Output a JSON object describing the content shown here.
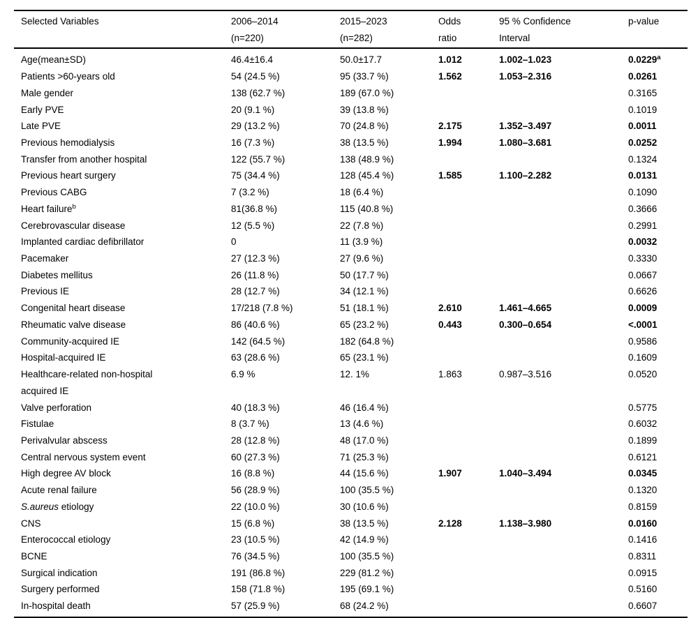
{
  "colors": {
    "text": "#000000",
    "background": "#ffffff",
    "rule": "#000000"
  },
  "table": {
    "headers": {
      "variables": "Selected Variables",
      "period1": "2006–2014\n(n=220)",
      "period2": "2015–2023\n(n=282)",
      "odds_ratio": "Odds\nratio",
      "ci": "95 % Confidence\nInterval",
      "p_value": "p-value"
    },
    "rows": [
      {
        "v": "Age(mean±SD)",
        "a": "46.4±16.4",
        "b": "50.0±17.7",
        "or": "1.012",
        "ci": "1.002–1.023",
        "p": "0.0229",
        "ps": "a",
        "bold": true
      },
      {
        "v": "Patients >60-years old",
        "a": "54 (24.5 %)",
        "b": "95 (33.7 %)",
        "or": "1.562",
        "ci": "1.053–2.316",
        "p": "0.0261",
        "bold": true
      },
      {
        "v": "Male gender",
        "a": "138 (62.7 %)",
        "b": "189 (67.0 %)",
        "or": "",
        "ci": "",
        "p": "0.3165",
        "bold": false
      },
      {
        "v": "Early PVE",
        "a": "20 (9.1 %)",
        "b": "39 (13.8 %)",
        "or": "",
        "ci": "",
        "p": "0.1019",
        "bold": false
      },
      {
        "v": "Late PVE",
        "a": "29 (13.2 %)",
        "b": "70 (24.8 %)",
        "or": "2.175",
        "ci": "1.352–3.497",
        "p": "0.0011",
        "bold": true
      },
      {
        "v": "Previous hemodialysis",
        "a": "16 (7.3 %)",
        "b": "38 (13.5 %)",
        "or": "1.994",
        "ci": "1.080–3.681",
        "p": "0.0252",
        "bold": true
      },
      {
        "v": "Transfer from another hospital",
        "a": "122 (55.7 %)",
        "b": "138 (48.9 %)",
        "or": "",
        "ci": "",
        "p": "0.1324",
        "bold": false
      },
      {
        "v": "Previous heart surgery",
        "a": "75 (34.4 %)",
        "b": "128 (45.4 %)",
        "or": "1.585",
        "ci": "1.100–2.282",
        "p": "0.0131",
        "bold": true
      },
      {
        "v": "Previous CABG",
        "a": "7 (3.2 %)",
        "b": "18 (6.4 %)",
        "or": "",
        "ci": "",
        "p": "0.1090",
        "bold": false
      },
      {
        "v": "Heart failure",
        "vs": "b",
        "a": "81(36.8 %)",
        "b": "115 (40.8 %)",
        "or": "",
        "ci": "",
        "p": "0.3666",
        "bold": false
      },
      {
        "v": "Cerebrovascular disease",
        "a": "12 (5.5 %)",
        "b": "22 (7.8 %)",
        "or": "",
        "ci": "",
        "p": "0.2991",
        "bold": false
      },
      {
        "v": "Implanted cardiac defibrillator",
        "a": "0",
        "b": "11 (3.9 %)",
        "or": "",
        "ci": "",
        "p": "0.0032",
        "bold": true
      },
      {
        "v": "Pacemaker",
        "a": "27 (12.3 %)",
        "b": "27 (9.6 %)",
        "or": "",
        "ci": "",
        "p": "0.3330",
        "bold": false
      },
      {
        "v": "Diabetes mellitus",
        "a": "26 (11.8 %)",
        "b": "50 (17.7 %)",
        "or": "",
        "ci": "",
        "p": "0.0667",
        "bold": false
      },
      {
        "v": "Previous IE",
        "a": "28 (12.7 %)",
        "b": "34 (12.1 %)",
        "or": "",
        "ci": "",
        "p": "0.6626",
        "bold": false
      },
      {
        "v": "Congenital heart disease",
        "a": "17/218 (7.8 %)",
        "b": "51 (18.1 %)",
        "or": "2.610",
        "ci": "1.461–4.665",
        "p": "0.0009",
        "bold": true
      },
      {
        "v": "Rheumatic valve disease",
        "a": "86 (40.6 %)",
        "b": "65 (23.2 %)",
        "or": "0.443",
        "ci": "0.300–0.654",
        "p": "<.0001",
        "bold": true
      },
      {
        "v": "Community-acquired IE",
        "a": "142 (64.5 %)",
        "b": "182 (64.8 %)",
        "or": "",
        "ci": "",
        "p": "0.9586",
        "bold": false
      },
      {
        "v": "Hospital-acquired IE",
        "a": "63 (28.6 %)",
        "b": "65 (23.1 %)",
        "or": "",
        "ci": "",
        "p": "0.1609",
        "bold": false
      },
      {
        "v": "Healthcare-related non-hospital\nacquired IE",
        "a": "6.9 %",
        "b": "12. 1%",
        "or": "1.863",
        "ci": "0.987–3.516",
        "p": "0.0520",
        "bold": false
      },
      {
        "v": "Valve perforation",
        "a": "40 (18.3 %)",
        "b": "46 (16.4 %)",
        "or": "",
        "ci": "",
        "p": "0.5775",
        "bold": false
      },
      {
        "v": "Fistulae",
        "a": "8 (3.7 %)",
        "b": "13 (4.6 %)",
        "or": "",
        "ci": "",
        "p": "0.6032",
        "bold": false
      },
      {
        "v": "Perivalvular abscess",
        "a": "28 (12.8 %)",
        "b": "48 (17.0 %)",
        "or": "",
        "ci": "",
        "p": "0.1899",
        "bold": false
      },
      {
        "v": "Central nervous system event",
        "a": "60 (27.3 %)",
        "b": "71 (25.3 %)",
        "or": "",
        "ci": "",
        "p": "0.6121",
        "bold": false
      },
      {
        "v": "High degree AV block",
        "a": "16 (8.8 %)",
        "b": "44 (15.6 %)",
        "or": "1.907",
        "ci": "1.040–3.494",
        "p": "0.0345",
        "bold": true
      },
      {
        "v": "Acute renal failure",
        "a": "56 (28.9 %)",
        "b": "100 (35.5 %)",
        "or": "",
        "ci": "",
        "p": "0.1320",
        "bold": false
      },
      {
        "vi": "S.aureus",
        "v": " etiology",
        "a": "22 (10.0 %)",
        "b": "30 (10.6 %)",
        "or": "",
        "ci": "",
        "p": "0.8159",
        "bold": false
      },
      {
        "v": "CNS",
        "a": "15 (6.8 %)",
        "b": "38 (13.5 %)",
        "or": "2.128",
        "ci": "1.138–3.980",
        "p": "0.0160",
        "bold": true
      },
      {
        "v": "Enterococcal etiology",
        "a": "23 (10.5 %)",
        "b": "42 (14.9 %)",
        "or": "",
        "ci": "",
        "p": "0.1416",
        "bold": false
      },
      {
        "v": "BCNE",
        "a": "76 (34.5 %)",
        "b": "100 (35.5 %)",
        "or": "",
        "ci": "",
        "p": "0.8311",
        "bold": false
      },
      {
        "v": "Surgical indication",
        "a": "191 (86.8 %)",
        "b": "229 (81.2 %)",
        "or": "",
        "ci": "",
        "p": "0.0915",
        "bold": false
      },
      {
        "v": "Surgery performed",
        "a": "158 (71.8 %)",
        "b": "195 (69.1 %)",
        "or": "",
        "ci": "",
        "p": "0.5160",
        "bold": false
      },
      {
        "v": "In-hospital death",
        "a": "57 (25.9 %)",
        "b": "68 (24.2 %)",
        "or": "",
        "ci": "",
        "p": "0.6607",
        "bold": false
      }
    ]
  }
}
